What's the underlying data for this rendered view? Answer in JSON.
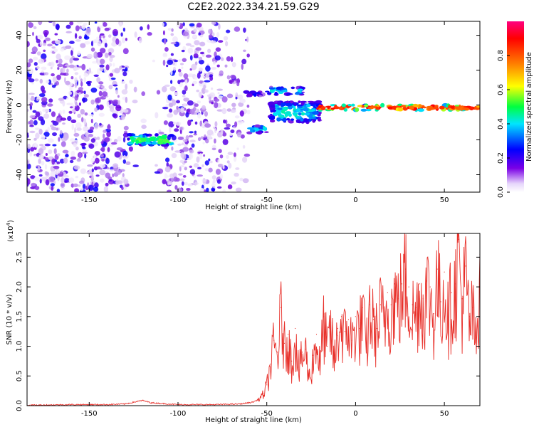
{
  "title": "C2E2.2022.334.21.59.G29",
  "chart_data": [
    {
      "type": "heatmap",
      "xlabel": "Height of straight line (km)",
      "ylabel": "Frequency (Hz)",
      "xlim": [
        -185,
        70
      ],
      "ylim": [
        -50,
        48
      ],
      "xticks": [
        -150,
        -100,
        -50,
        0,
        50
      ],
      "yticks": [
        -40,
        -20,
        0,
        20,
        40
      ],
      "colorbar": {
        "label": "Normalized spectral amplitude",
        "range": [
          0,
          1
        ],
        "ticks": [
          0.0,
          0.2,
          0.4,
          0.6,
          0.8
        ],
        "colormap": [
          "#ffffff",
          "#c9a8f0",
          "#6a00e0",
          "#0000ff",
          "#00e0ff",
          "#00ff60",
          "#ffff00",
          "#ff8000",
          "#ff0000",
          "#ff0080"
        ]
      },
      "features": [
        {
          "x": [
            -185,
            -60
          ],
          "y": [
            -50,
            48
          ],
          "level": 0.15
        },
        {
          "x": [
            -128,
            -103
          ],
          "y": [
            -23,
            -17
          ],
          "level": 0.55
        },
        {
          "x": [
            -60,
            -50
          ],
          "y": [
            -16,
            -12
          ],
          "level": 0.45
        },
        {
          "x": [
            -62,
            -52
          ],
          "y": [
            5,
            8
          ],
          "level": 0.3
        },
        {
          "x": [
            -50,
            -30
          ],
          "y": [
            6,
            10
          ],
          "level": 0.45
        },
        {
          "x": [
            -48,
            -20
          ],
          "y": [
            -10,
            2
          ],
          "level": 0.45
        },
        {
          "x": [
            -22,
            70
          ],
          "y": [
            -3,
            0
          ],
          "level": 0.85
        }
      ]
    },
    {
      "type": "line",
      "xlabel": "Height of straight line (km)",
      "ylabel": "SNR (10 * v/v)",
      "yscale_label": "(x10",
      "yscale_exp": "4",
      "xlim": [
        -185,
        70
      ],
      "ylim": [
        0,
        2.9
      ],
      "xticks": [
        -150,
        -100,
        -50,
        0,
        50
      ],
      "yticks": [
        0.0,
        0.5,
        1.0,
        1.5,
        2.0,
        2.5
      ],
      "color": "#e8302a",
      "x": [
        -185,
        -160,
        -140,
        -130,
        -125,
        -120,
        -115,
        -100,
        -80,
        -65,
        -58,
        -55,
        -52,
        -50,
        -48,
        -46,
        -44,
        -42,
        -40,
        -38,
        -36,
        -34,
        -32,
        -30,
        -28,
        -26,
        -24,
        -22,
        -20,
        -18,
        -16,
        -14,
        -12,
        -10,
        -8,
        -6,
        -4,
        -2,
        0,
        2,
        4,
        6,
        8,
        10,
        12,
        14,
        16,
        18,
        20,
        22,
        24,
        26,
        28,
        30,
        32,
        34,
        36,
        38,
        40,
        42,
        44,
        46,
        48,
        50,
        52,
        54,
        56,
        58,
        60,
        62,
        64,
        66,
        68,
        70
      ],
      "values": [
        0.01,
        0.02,
        0.02,
        0.03,
        0.06,
        0.09,
        0.05,
        0.02,
        0.02,
        0.03,
        0.06,
        0.1,
        0.2,
        0.35,
        0.7,
        1.1,
        0.9,
        1.65,
        1.05,
        1.2,
        0.75,
        1.3,
        0.6,
        0.9,
        0.95,
        0.5,
        0.85,
        1.2,
        0.7,
        1.5,
        1.0,
        1.4,
        0.8,
        1.3,
        1.5,
        1.25,
        1.45,
        1.1,
        1.5,
        1.3,
        1.65,
        1.0,
        1.7,
        1.45,
        1.3,
        1.7,
        1.5,
        1.9,
        1.7,
        2.05,
        1.8,
        2.05,
        2.3,
        2.0,
        1.7,
        1.65,
        2.05,
        1.8,
        2.1,
        2.0,
        1.55,
        2.3,
        1.75,
        2.25,
        1.6,
        1.9,
        2.05,
        2.8,
        1.8,
        2.35,
        1.5,
        1.65,
        1.05,
        2.55
      ]
    }
  ]
}
